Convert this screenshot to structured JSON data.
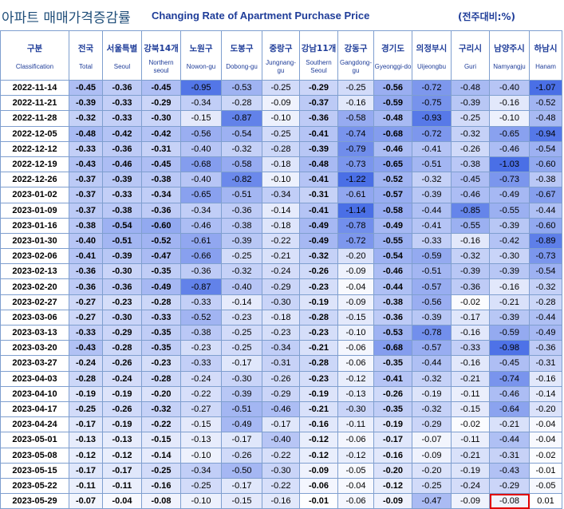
{
  "title": {
    "korean": "아파트 매매가격증감률",
    "english": "Changing Rate of Apartment Purchase Price",
    "unit": "(전주대비:%)"
  },
  "columns": [
    {
      "ko": "구분",
      "en": "Classification"
    },
    {
      "ko": "전국",
      "en": "Total"
    },
    {
      "ko": "서울특별",
      "en": "Seoul"
    },
    {
      "ko": "강북14개",
      "en": "Northern seoul"
    },
    {
      "ko": "노원구",
      "en": "Nowon-gu"
    },
    {
      "ko": "도봉구",
      "en": "Dobong-gu"
    },
    {
      "ko": "중랑구",
      "en": "Jungnang-gu"
    },
    {
      "ko": "강남11개",
      "en": "Southern Seoul"
    },
    {
      "ko": "강동구",
      "en": "Gangdong-gu"
    },
    {
      "ko": "경기도",
      "en": "Gyeonggi-do"
    },
    {
      "ko": "의정부시",
      "en": "Uijeongbu"
    },
    {
      "ko": "구리시",
      "en": "Guri"
    },
    {
      "ko": "남양주시",
      "en": "Namyangju"
    },
    {
      "ko": "하남시",
      "en": "Hanam"
    }
  ],
  "rows": [
    {
      "date": "2022-11-14",
      "values": [
        "-0.45",
        "-0.36",
        "-0.45",
        "-0.95",
        "-0.53",
        "-0.25",
        "-0.29",
        "-0.25",
        "-0.56",
        "-0.72",
        "-0.48",
        "-0.40",
        "-1.07"
      ]
    },
    {
      "date": "2022-11-21",
      "values": [
        "-0.39",
        "-0.33",
        "-0.29",
        "-0.34",
        "-0.28",
        "-0.09",
        "-0.37",
        "-0.16",
        "-0.59",
        "-0.75",
        "-0.39",
        "-0.16",
        "-0.52"
      ]
    },
    {
      "date": "2022-11-28",
      "values": [
        "-0.32",
        "-0.33",
        "-0.30",
        "-0.15",
        "-0.87",
        "-0.10",
        "-0.36",
        "-0.58",
        "-0.48",
        "-0.93",
        "-0.25",
        "-0.10",
        "-0.48"
      ]
    },
    {
      "date": "2022-12-05",
      "values": [
        "-0.48",
        "-0.42",
        "-0.42",
        "-0.56",
        "-0.54",
        "-0.25",
        "-0.41",
        "-0.74",
        "-0.68",
        "-0.72",
        "-0.32",
        "-0.65",
        "-0.94"
      ]
    },
    {
      "date": "2022-12-12",
      "values": [
        "-0.33",
        "-0.36",
        "-0.31",
        "-0.40",
        "-0.32",
        "-0.28",
        "-0.39",
        "-0.79",
        "-0.46",
        "-0.41",
        "-0.26",
        "-0.46",
        "-0.54"
      ]
    },
    {
      "date": "2022-12-19",
      "values": [
        "-0.43",
        "-0.46",
        "-0.45",
        "-0.68",
        "-0.58",
        "-0.18",
        "-0.48",
        "-0.73",
        "-0.65",
        "-0.51",
        "-0.38",
        "-1.03",
        "-0.60"
      ]
    },
    {
      "date": "2022-12-26",
      "values": [
        "-0.37",
        "-0.39",
        "-0.38",
        "-0.40",
        "-0.82",
        "-0.10",
        "-0.41",
        "-1.22",
        "-0.52",
        "-0.32",
        "-0.45",
        "-0.73",
        "-0.38"
      ]
    },
    {
      "date": "2023-01-02",
      "values": [
        "-0.37",
        "-0.33",
        "-0.34",
        "-0.65",
        "-0.51",
        "-0.34",
        "-0.31",
        "-0.61",
        "-0.57",
        "-0.39",
        "-0.46",
        "-0.49",
        "-0.67"
      ]
    },
    {
      "date": "2023-01-09",
      "values": [
        "-0.37",
        "-0.38",
        "-0.36",
        "-0.34",
        "-0.36",
        "-0.14",
        "-0.41",
        "-1.14",
        "-0.58",
        "-0.44",
        "-0.85",
        "-0.55",
        "-0.44"
      ]
    },
    {
      "date": "2023-01-16",
      "values": [
        "-0.38",
        "-0.54",
        "-0.60",
        "-0.46",
        "-0.38",
        "-0.18",
        "-0.49",
        "-0.78",
        "-0.49",
        "-0.41",
        "-0.55",
        "-0.39",
        "-0.60"
      ]
    },
    {
      "date": "2023-01-30",
      "values": [
        "-0.40",
        "-0.51",
        "-0.52",
        "-0.61",
        "-0.39",
        "-0.22",
        "-0.49",
        "-0.72",
        "-0.55",
        "-0.33",
        "-0.16",
        "-0.42",
        "-0.89"
      ]
    },
    {
      "date": "2023-02-06",
      "values": [
        "-0.41",
        "-0.39",
        "-0.47",
        "-0.66",
        "-0.25",
        "-0.21",
        "-0.32",
        "-0.20",
        "-0.54",
        "-0.59",
        "-0.32",
        "-0.30",
        "-0.73"
      ]
    },
    {
      "date": "2023-02-13",
      "values": [
        "-0.36",
        "-0.30",
        "-0.35",
        "-0.36",
        "-0.32",
        "-0.24",
        "-0.26",
        "-0.09",
        "-0.46",
        "-0.51",
        "-0.39",
        "-0.39",
        "-0.54"
      ]
    },
    {
      "date": "2023-02-20",
      "values": [
        "-0.36",
        "-0.36",
        "-0.49",
        "-0.87",
        "-0.40",
        "-0.29",
        "-0.23",
        "-0.04",
        "-0.44",
        "-0.57",
        "-0.36",
        "-0.16",
        "-0.32"
      ]
    },
    {
      "date": "2023-02-27",
      "values": [
        "-0.27",
        "-0.23",
        "-0.28",
        "-0.33",
        "-0.14",
        "-0.30",
        "-0.19",
        "-0.09",
        "-0.38",
        "-0.56",
        "-0.02",
        "-0.21",
        "-0.28"
      ]
    },
    {
      "date": "2023-03-06",
      "values": [
        "-0.27",
        "-0.30",
        "-0.33",
        "-0.52",
        "-0.23",
        "-0.18",
        "-0.28",
        "-0.15",
        "-0.36",
        "-0.39",
        "-0.17",
        "-0.39",
        "-0.44"
      ]
    },
    {
      "date": "2023-03-13",
      "values": [
        "-0.33",
        "-0.29",
        "-0.35",
        "-0.38",
        "-0.25",
        "-0.23",
        "-0.23",
        "-0.10",
        "-0.53",
        "-0.78",
        "-0.16",
        "-0.59",
        "-0.49"
      ]
    },
    {
      "date": "2023-03-20",
      "values": [
        "-0.43",
        "-0.28",
        "-0.35",
        "-0.23",
        "-0.25",
        "-0.34",
        "-0.21",
        "-0.06",
        "-0.68",
        "-0.57",
        "-0.33",
        "-0.98",
        "-0.36"
      ]
    },
    {
      "date": "2023-03-27",
      "values": [
        "-0.24",
        "-0.26",
        "-0.23",
        "-0.33",
        "-0.17",
        "-0.31",
        "-0.28",
        "-0.06",
        "-0.35",
        "-0.44",
        "-0.16",
        "-0.45",
        "-0.31"
      ]
    },
    {
      "date": "2023-04-03",
      "values": [
        "-0.28",
        "-0.24",
        "-0.28",
        "-0.24",
        "-0.30",
        "-0.26",
        "-0.23",
        "-0.12",
        "-0.41",
        "-0.32",
        "-0.21",
        "-0.74",
        "-0.16"
      ]
    },
    {
      "date": "2023-04-10",
      "values": [
        "-0.19",
        "-0.19",
        "-0.20",
        "-0.22",
        "-0.39",
        "-0.29",
        "-0.19",
        "-0.13",
        "-0.26",
        "-0.19",
        "-0.11",
        "-0.46",
        "-0.14"
      ]
    },
    {
      "date": "2023-04-17",
      "values": [
        "-0.25",
        "-0.26",
        "-0.32",
        "-0.27",
        "-0.51",
        "-0.46",
        "-0.21",
        "-0.30",
        "-0.35",
        "-0.32",
        "-0.15",
        "-0.64",
        "-0.20"
      ]
    },
    {
      "date": "2023-04-24",
      "values": [
        "-0.17",
        "-0.19",
        "-0.22",
        "-0.15",
        "-0.49",
        "-0.17",
        "-0.16",
        "-0.11",
        "-0.19",
        "-0.29",
        "-0.02",
        "-0.21",
        "-0.04"
      ]
    },
    {
      "date": "2023-05-01",
      "values": [
        "-0.13",
        "-0.13",
        "-0.15",
        "-0.13",
        "-0.17",
        "-0.40",
        "-0.12",
        "-0.06",
        "-0.17",
        "-0.07",
        "-0.11",
        "-0.44",
        "-0.04"
      ]
    },
    {
      "date": "2023-05-08",
      "values": [
        "-0.12",
        "-0.12",
        "-0.14",
        "-0.10",
        "-0.26",
        "-0.22",
        "-0.12",
        "-0.12",
        "-0.16",
        "-0.09",
        "-0.21",
        "-0.31",
        "-0.02"
      ]
    },
    {
      "date": "2023-05-15",
      "values": [
        "-0.17",
        "-0.17",
        "-0.25",
        "-0.34",
        "-0.50",
        "-0.30",
        "-0.09",
        "-0.05",
        "-0.20",
        "-0.20",
        "-0.19",
        "-0.43",
        "-0.01"
      ]
    },
    {
      "date": "2023-05-22",
      "values": [
        "-0.11",
        "-0.11",
        "-0.16",
        "-0.25",
        "-0.17",
        "-0.22",
        "-0.06",
        "-0.04",
        "-0.12",
        "-0.25",
        "-0.24",
        "-0.29",
        "-0.05"
      ]
    },
    {
      "date": "2023-05-29",
      "values": [
        "-0.07",
        "-0.04",
        "-0.08",
        "-0.10",
        "-0.15",
        "-0.16",
        "-0.01",
        "-0.06",
        "-0.09",
        "-0.47",
        "-0.09",
        "-0.08",
        "0.01"
      ]
    }
  ],
  "highlighted_cell": {
    "date": "2023-05-29",
    "column": "남양주시",
    "value": "-0.08"
  },
  "colors": {
    "scale_light": "#ffffff",
    "scale_dark": "#4a6fe6",
    "header_text": "#1f3d99",
    "title_text": "#1f4e79",
    "highlight_border": "#e00000",
    "grid": "#7f9fcf"
  }
}
